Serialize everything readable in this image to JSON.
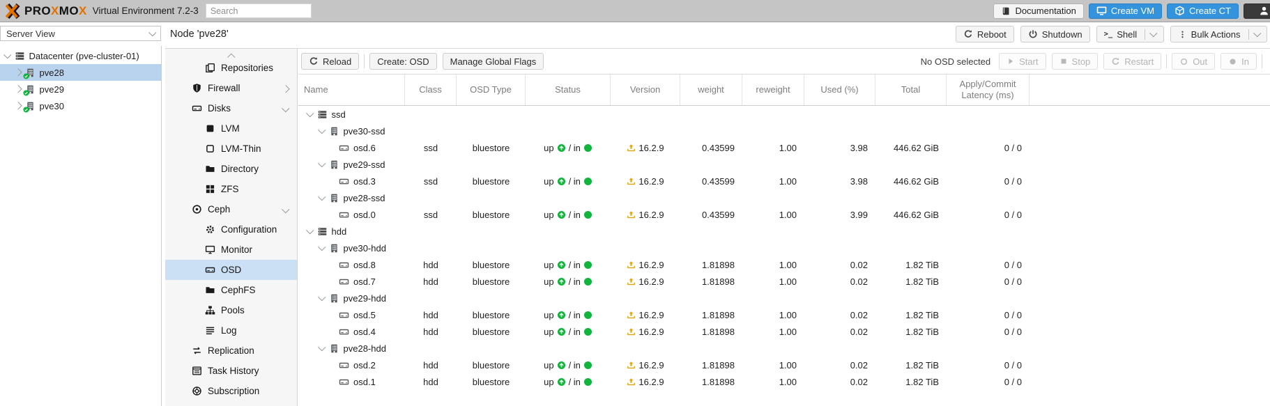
{
  "topbar": {
    "brand_parts": [
      {
        "text": "PRO",
        "color": "dark"
      },
      {
        "text": "X",
        "color": "orange"
      },
      {
        "text": "MO",
        "color": "dark"
      },
      {
        "text": "X",
        "color": "orange"
      }
    ],
    "subtitle": "Virtual Environment 7.2-3",
    "search_placeholder": "Search",
    "documentation_label": "Documentation",
    "create_vm_label": "Create VM",
    "create_ct_label": "Create CT"
  },
  "node_header": {
    "title": "Node 'pve28'",
    "reboot_label": "Reboot",
    "shutdown_label": "Shutdown",
    "shell_label": "Shell",
    "bulk_actions_label": "Bulk Actions"
  },
  "sidebar": {
    "view_label": "Server View",
    "items": [
      {
        "label": "Datacenter (pve-cluster-01)",
        "icon": "server-stack",
        "level": 0,
        "chevron": "down",
        "selected": false
      },
      {
        "label": "pve28",
        "icon": "node",
        "level": 1,
        "chevron": "right",
        "selected": true
      },
      {
        "label": "pve29",
        "icon": "node",
        "level": 1,
        "chevron": "right",
        "selected": false
      },
      {
        "label": "pve30",
        "icon": "node",
        "level": 1,
        "chevron": "right",
        "selected": false
      }
    ]
  },
  "menu": {
    "items": [
      {
        "label": "Repositories",
        "icon": "copy",
        "indent": 1
      },
      {
        "label": "Firewall",
        "icon": "shield",
        "indent": 0,
        "expand": "right"
      },
      {
        "label": "Disks",
        "icon": "drive",
        "indent": 0,
        "expand": "down"
      },
      {
        "label": "LVM",
        "icon": "square-filled",
        "indent": 1
      },
      {
        "label": "LVM-Thin",
        "icon": "square-outline",
        "indent": 1
      },
      {
        "label": "Directory",
        "icon": "folder",
        "indent": 1
      },
      {
        "label": "ZFS",
        "icon": "grid",
        "indent": 1
      },
      {
        "label": "Ceph",
        "icon": "ceph",
        "indent": 0,
        "expand": "down"
      },
      {
        "label": "Configuration",
        "icon": "gear",
        "indent": 1
      },
      {
        "label": "Monitor",
        "icon": "monitor",
        "indent": 1
      },
      {
        "label": "OSD",
        "icon": "drive",
        "indent": 1,
        "selected": true
      },
      {
        "label": "CephFS",
        "icon": "folder",
        "indent": 1
      },
      {
        "label": "Pools",
        "icon": "sitemap",
        "indent": 1
      },
      {
        "label": "Log",
        "icon": "list",
        "indent": 1
      },
      {
        "label": "Replication",
        "icon": "replication",
        "indent": 0
      },
      {
        "label": "Task History",
        "icon": "task-list",
        "indent": 0
      },
      {
        "label": "Subscription",
        "icon": "life-ring",
        "indent": 0
      }
    ]
  },
  "toolbar": {
    "reload_label": "Reload",
    "create_osd_label": "Create: OSD",
    "manage_flags_label": "Manage Global Flags",
    "selection_status": "No OSD selected",
    "start_label": "Start",
    "stop_label": "Stop",
    "restart_label": "Restart",
    "out_label": "Out",
    "in_label": "In"
  },
  "table": {
    "columns": [
      "Name",
      "Class",
      "OSD Type",
      "Status",
      "Version",
      "weight",
      "reweight",
      "Used (%)",
      "Total",
      "Apply/Commit Latency (ms)"
    ],
    "rows": [
      {
        "type": "group",
        "name": "ssd"
      },
      {
        "type": "host",
        "name": "pve30-ssd"
      },
      {
        "type": "osd",
        "name": "osd.6",
        "class": "ssd",
        "osd_type": "bluestore",
        "status_up": "up",
        "status_mid": "/ in",
        "version": "16.2.9",
        "weight": "0.43599",
        "reweight": "1.00",
        "used": "3.98",
        "total": "446.62 GiB",
        "latency": "0 / 0"
      },
      {
        "type": "host",
        "name": "pve29-ssd"
      },
      {
        "type": "osd",
        "name": "osd.3",
        "class": "ssd",
        "osd_type": "bluestore",
        "status_up": "up",
        "status_mid": "/ in",
        "version": "16.2.9",
        "weight": "0.43599",
        "reweight": "1.00",
        "used": "3.98",
        "total": "446.62 GiB",
        "latency": "0 / 0"
      },
      {
        "type": "host",
        "name": "pve28-ssd"
      },
      {
        "type": "osd",
        "name": "osd.0",
        "class": "ssd",
        "osd_type": "bluestore",
        "status_up": "up",
        "status_mid": "/ in",
        "version": "16.2.9",
        "weight": "0.43599",
        "reweight": "1.00",
        "used": "3.99",
        "total": "446.62 GiB",
        "latency": "0 / 0"
      },
      {
        "type": "group",
        "name": "hdd"
      },
      {
        "type": "host",
        "name": "pve30-hdd"
      },
      {
        "type": "osd",
        "name": "osd.8",
        "class": "hdd",
        "osd_type": "bluestore",
        "status_up": "up",
        "status_mid": "/ in",
        "version": "16.2.9",
        "weight": "1.81898",
        "reweight": "1.00",
        "used": "0.02",
        "total": "1.82 TiB",
        "latency": "0 / 0"
      },
      {
        "type": "osd",
        "name": "osd.7",
        "class": "hdd",
        "osd_type": "bluestore",
        "status_up": "up",
        "status_mid": "/ in",
        "version": "16.2.9",
        "weight": "1.81898",
        "reweight": "1.00",
        "used": "0.02",
        "total": "1.82 TiB",
        "latency": "0 / 0"
      },
      {
        "type": "host",
        "name": "pve29-hdd"
      },
      {
        "type": "osd",
        "name": "osd.5",
        "class": "hdd",
        "osd_type": "bluestore",
        "status_up": "up",
        "status_mid": "/ in",
        "version": "16.2.9",
        "weight": "1.81898",
        "reweight": "1.00",
        "used": "0.02",
        "total": "1.82 TiB",
        "latency": "0 / 0"
      },
      {
        "type": "osd",
        "name": "osd.4",
        "class": "hdd",
        "osd_type": "bluestore",
        "status_up": "up",
        "status_mid": "/ in",
        "version": "16.2.9",
        "weight": "1.81898",
        "reweight": "1.00",
        "used": "0.02",
        "total": "1.82 TiB",
        "latency": "0 / 0"
      },
      {
        "type": "host",
        "name": "pve28-hdd"
      },
      {
        "type": "osd",
        "name": "osd.2",
        "class": "hdd",
        "osd_type": "bluestore",
        "status_up": "up",
        "status_mid": "/ in",
        "version": "16.2.9",
        "weight": "1.81898",
        "reweight": "1.00",
        "used": "0.02",
        "total": "1.82 TiB",
        "latency": "0 / 0"
      },
      {
        "type": "osd",
        "name": "osd.1",
        "class": "hdd",
        "osd_type": "bluestore",
        "status_up": "up",
        "status_mid": "/ in",
        "version": "16.2.9",
        "weight": "1.81898",
        "reweight": "1.00",
        "used": "0.02",
        "total": "1.82 TiB",
        "latency": "0 / 0"
      }
    ]
  },
  "colors": {
    "accent_blue": "#3394dd",
    "brand_orange": "#e57000",
    "status_green": "#12b53c",
    "version_amber": "#e2a70d",
    "selection_blue": "#b9d3ee"
  }
}
